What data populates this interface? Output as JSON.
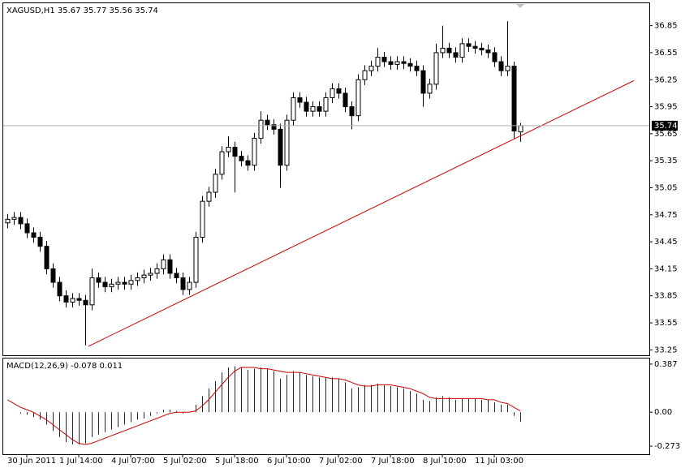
{
  "chart_data": [
    {
      "type": "candlestick",
      "title": "XAGUSD,H1  35.67 35.77 35.56 35.74",
      "categories": [
        null,
        null,
        null,
        "30 Jun 2011",
        null,
        null,
        null,
        null,
        null,
        null,
        null,
        "1 Jul 14:00",
        null,
        null,
        null,
        null,
        null,
        null,
        null,
        "4 Jul 07:00",
        null,
        null,
        null,
        null,
        null,
        null,
        null,
        "5 Jul 02:00",
        null,
        null,
        null,
        null,
        null,
        null,
        null,
        "5 Jul 18:00",
        null,
        null,
        null,
        null,
        null,
        null,
        null,
        "6 Jul 10:00",
        null,
        null,
        null,
        null,
        null,
        null,
        null,
        "7 Jul 02:00",
        null,
        null,
        null,
        null,
        null,
        null,
        null,
        "7 Jul 18:00",
        null,
        null,
        null,
        null,
        null,
        null,
        null,
        "8 Jul 10:00",
        null,
        null,
        null,
        null,
        null,
        null,
        null,
        "11 Jul 03:00",
        null,
        null,
        null,
        null
      ],
      "open": [
        34.66,
        34.7,
        34.72,
        34.65,
        34.55,
        34.5,
        34.4,
        34.15,
        34.0,
        33.85,
        33.78,
        33.82,
        33.8,
        33.75,
        34.05,
        34.0,
        33.95,
        33.98,
        34.0,
        33.98,
        34.02,
        34.05,
        34.08,
        34.1,
        34.15,
        34.25,
        34.1,
        34.05,
        33.92,
        34.0,
        34.5,
        34.9,
        35.0,
        35.2,
        35.45,
        35.5,
        35.4,
        35.35,
        35.3,
        35.6,
        35.8,
        35.75,
        35.7,
        35.3,
        35.8,
        36.05,
        36.0,
        35.9,
        35.95,
        35.9,
        36.05,
        36.15,
        36.1,
        35.95,
        35.85,
        36.25,
        36.35,
        36.4,
        36.5,
        36.45,
        36.42,
        36.45,
        36.43,
        36.4,
        36.35,
        36.1,
        36.2,
        36.55,
        36.6,
        36.55,
        36.5,
        36.65,
        36.62,
        36.6,
        36.58,
        36.55,
        36.45,
        36.35,
        36.4,
        35.67
      ],
      "high": [
        34.76,
        34.78,
        34.78,
        34.71,
        34.61,
        34.56,
        34.46,
        34.21,
        34.06,
        33.91,
        33.88,
        33.88,
        33.86,
        34.15,
        34.11,
        34.06,
        34.04,
        34.06,
        34.06,
        34.08,
        34.11,
        34.14,
        34.16,
        34.21,
        34.31,
        34.31,
        34.16,
        34.11,
        34.06,
        34.56,
        34.96,
        35.06,
        35.26,
        35.51,
        35.62,
        35.56,
        35.46,
        35.41,
        35.66,
        35.9,
        35.86,
        35.81,
        35.76,
        35.86,
        36.11,
        36.11,
        36.06,
        36.01,
        36.01,
        36.11,
        36.21,
        36.21,
        36.16,
        36.01,
        36.31,
        36.41,
        36.46,
        36.6,
        36.56,
        36.51,
        36.51,
        36.51,
        36.49,
        36.46,
        36.41,
        36.26,
        36.65,
        36.85,
        36.66,
        36.61,
        36.71,
        36.71,
        36.68,
        36.66,
        36.64,
        36.61,
        36.51,
        36.9,
        36.45,
        35.77
      ],
      "low": [
        34.6,
        34.64,
        34.59,
        34.49,
        34.44,
        34.34,
        34.09,
        33.94,
        33.79,
        33.72,
        33.72,
        33.74,
        33.3,
        33.69,
        33.94,
        33.89,
        33.89,
        33.92,
        33.92,
        33.92,
        33.96,
        33.99,
        34.02,
        34.04,
        34.09,
        34.04,
        33.99,
        33.86,
        33.86,
        33.94,
        34.44,
        34.84,
        34.94,
        35.14,
        35.39,
        35.0,
        35.29,
        35.24,
        35.24,
        35.54,
        35.69,
        35.64,
        35.05,
        35.24,
        35.74,
        35.94,
        35.84,
        35.84,
        35.84,
        35.84,
        35.99,
        36.04,
        35.89,
        35.7,
        35.79,
        36.19,
        36.29,
        36.34,
        36.39,
        36.36,
        36.36,
        36.37,
        36.34,
        36.29,
        35.95,
        36.04,
        36.14,
        36.49,
        36.49,
        36.44,
        36.44,
        36.56,
        36.54,
        36.52,
        36.49,
        36.39,
        36.29,
        36.29,
        35.6,
        35.56
      ],
      "close": [
        34.7,
        34.72,
        34.65,
        34.55,
        34.5,
        34.4,
        34.15,
        34.0,
        33.85,
        33.78,
        33.82,
        33.8,
        33.75,
        34.05,
        34.0,
        33.95,
        33.98,
        34.0,
        33.98,
        34.02,
        34.05,
        34.08,
        34.1,
        34.15,
        34.25,
        34.1,
        34.05,
        33.92,
        34.0,
        34.5,
        34.9,
        35.0,
        35.2,
        35.45,
        35.5,
        35.4,
        35.35,
        35.3,
        35.6,
        35.8,
        35.75,
        35.7,
        35.3,
        35.8,
        36.05,
        36.0,
        35.9,
        35.95,
        35.9,
        36.05,
        36.15,
        36.1,
        35.95,
        35.85,
        36.25,
        36.35,
        36.4,
        36.5,
        36.45,
        36.42,
        36.45,
        36.43,
        36.4,
        36.35,
        36.1,
        36.2,
        36.55,
        36.6,
        36.55,
        36.5,
        36.65,
        36.62,
        36.6,
        36.58,
        36.55,
        36.45,
        36.35,
        36.4,
        35.68,
        35.74
      ],
      "up_color": "#ffffff",
      "down_color": "#000000",
      "wick_color": "#000000",
      "ylim": [
        33.19,
        37.09
      ],
      "yticks": [
        33.25,
        33.55,
        33.85,
        34.15,
        34.45,
        34.75,
        35.05,
        35.35,
        35.65,
        35.95,
        36.25,
        36.55,
        36.85
      ],
      "price_line": 35.74,
      "trendline": {
        "x": [
          12.5,
          96.5
        ],
        "y": [
          33.29,
          36.24
        ],
        "color": "#cc0000"
      }
    },
    {
      "type": "macd",
      "title": "MACD(12,26,9) -0.078 0.011",
      "series": [
        {
          "name": "MACD",
          "kind": "histogram",
          "color": "#1a1a80",
          "values": [
            0.0,
            0.0,
            -0.01,
            -0.02,
            -0.04,
            -0.06,
            -0.1,
            -0.15,
            -0.2,
            -0.24,
            -0.26,
            -0.26,
            -0.25,
            -0.2,
            -0.18,
            -0.16,
            -0.14,
            -0.12,
            -0.1,
            -0.08,
            -0.06,
            -0.05,
            -0.03,
            -0.01,
            0.02,
            0.02,
            0.01,
            -0.01,
            0.0,
            0.06,
            0.13,
            0.19,
            0.25,
            0.32,
            0.36,
            0.37,
            0.36,
            0.34,
            0.35,
            0.36,
            0.35,
            0.33,
            0.27,
            0.3,
            0.33,
            0.32,
            0.3,
            0.29,
            0.28,
            0.28,
            0.28,
            0.27,
            0.24,
            0.19,
            0.2,
            0.22,
            0.22,
            0.23,
            0.22,
            0.21,
            0.2,
            0.19,
            0.17,
            0.15,
            0.1,
            0.09,
            0.12,
            0.13,
            0.12,
            0.1,
            0.11,
            0.11,
            0.11,
            0.1,
            0.1,
            0.08,
            0.06,
            0.06,
            -0.03,
            -0.078
          ]
        },
        {
          "name": "Signal",
          "kind": "line",
          "color": "#cc0000",
          "values": [
            0.1,
            0.07,
            0.04,
            0.02,
            0.0,
            -0.03,
            -0.06,
            -0.1,
            -0.14,
            -0.18,
            -0.22,
            -0.25,
            -0.26,
            -0.25,
            -0.23,
            -0.21,
            -0.19,
            -0.17,
            -0.15,
            -0.13,
            -0.11,
            -0.09,
            -0.07,
            -0.05,
            -0.03,
            -0.01,
            0.0,
            0.0,
            0.0,
            0.01,
            0.05,
            0.1,
            0.16,
            0.22,
            0.28,
            0.33,
            0.36,
            0.36,
            0.36,
            0.35,
            0.35,
            0.34,
            0.33,
            0.32,
            0.32,
            0.32,
            0.31,
            0.3,
            0.29,
            0.28,
            0.27,
            0.27,
            0.26,
            0.24,
            0.22,
            0.21,
            0.21,
            0.22,
            0.22,
            0.22,
            0.21,
            0.2,
            0.19,
            0.17,
            0.15,
            0.12,
            0.11,
            0.11,
            0.11,
            0.11,
            0.11,
            0.11,
            0.11,
            0.11,
            0.1,
            0.1,
            0.08,
            0.07,
            0.04,
            0.011
          ]
        }
      ],
      "ylim": [
        -0.338,
        0.432
      ],
      "yticks": [
        0.387,
        {
          "value": 0,
          "label": "0.00"
        },
        -0.273
      ]
    }
  ]
}
